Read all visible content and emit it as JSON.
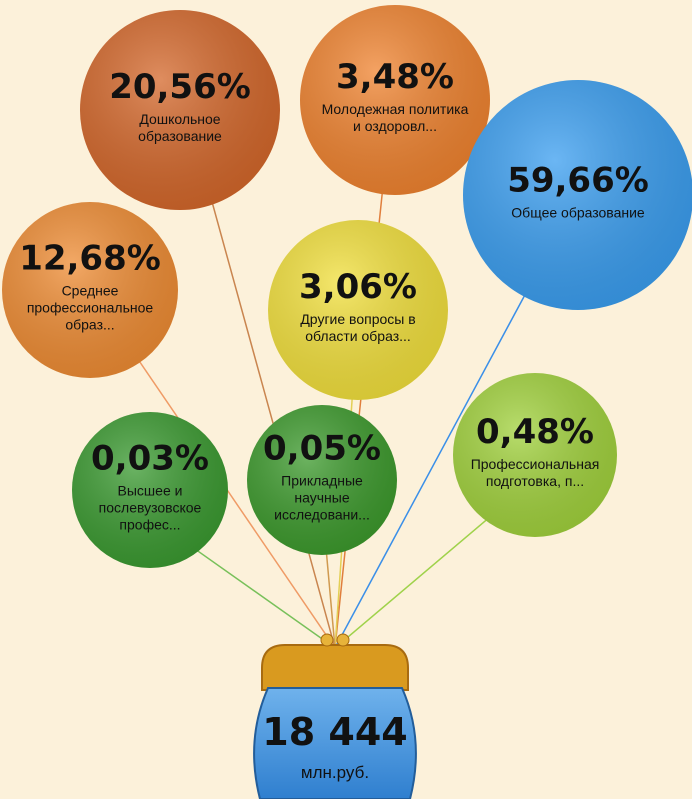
{
  "balloons": [
    {
      "percent": "20,56%",
      "label_lines": [
        "Дошкольное",
        "образование"
      ]
    },
    {
      "percent": "3,48%",
      "label_lines": [
        "Молодежная политика",
        "и оздоровл..."
      ]
    },
    {
      "percent": "59,66%",
      "label_lines": [
        "Общее образование"
      ]
    },
    {
      "percent": "12,68%",
      "label_lines": [
        "Среднее",
        "профессиональное",
        "образ..."
      ]
    },
    {
      "percent": "3,06%",
      "label_lines": [
        "Другие вопросы в",
        "области образ..."
      ]
    },
    {
      "percent": "0,03%",
      "label_lines": [
        "Высшее и",
        "послевузовское",
        "профес..."
      ]
    },
    {
      "percent": "0,05%",
      "label_lines": [
        "Прикладные",
        "научные",
        "исследовани..."
      ]
    },
    {
      "percent": "0,48%",
      "label_lines": [
        "Профессиональная",
        "подготовка, п..."
      ]
    }
  ],
  "total": {
    "value": "18 444",
    "unit": "млн.руб."
  }
}
